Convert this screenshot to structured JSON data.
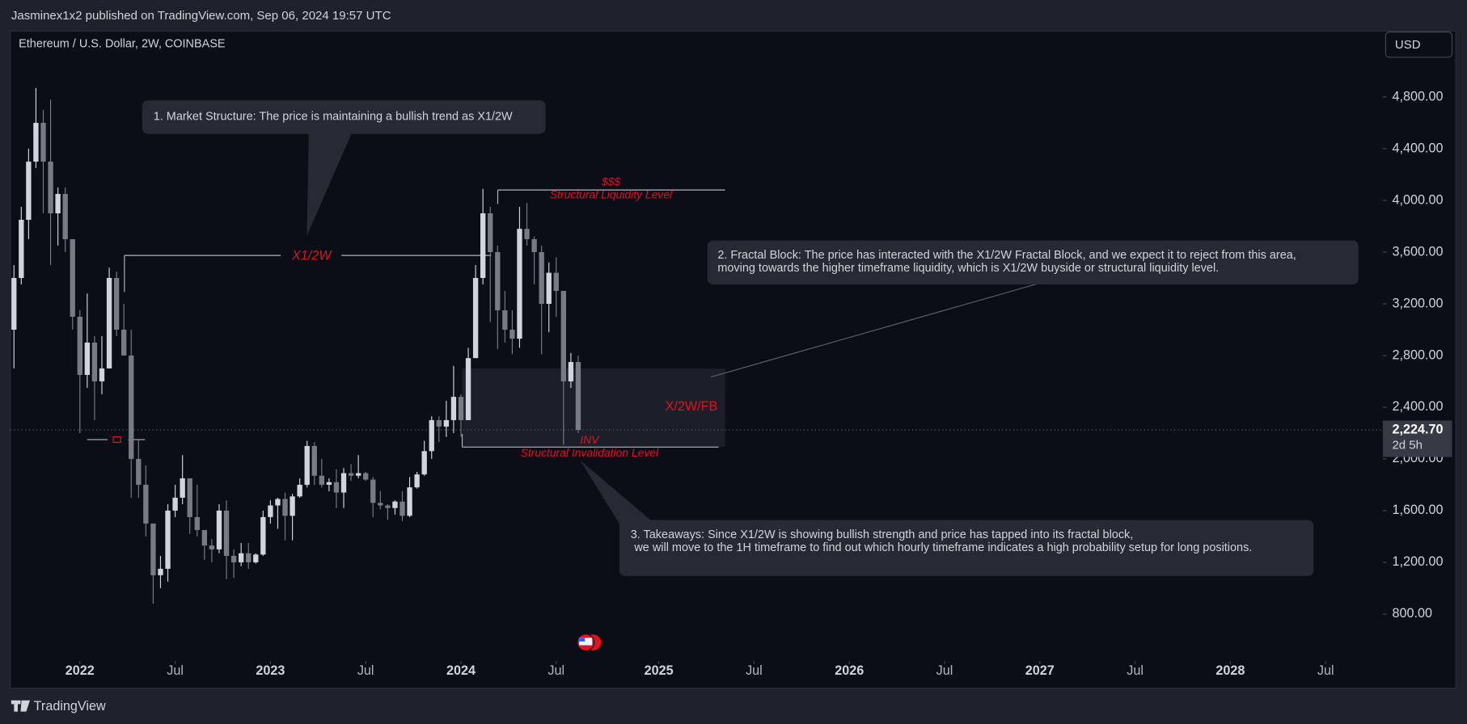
{
  "chart_data": {
    "type": "candlestick",
    "header": "Jasminex1x2 published on TradingView.com, Sep 06, 2024 19:57 UTC",
    "title": "Ethereum / U.S. Dollar, 2W, COINBASE",
    "currency": "USD",
    "brand": "TradingView",
    "up_color": "#d1d4dc",
    "down_color": "#787b86",
    "grid": false,
    "open": [
      3000,
      3400,
      3850,
      4300,
      4600,
      4300,
      3900,
      4050,
      3700,
      3100,
      2650,
      2900,
      2600,
      2700,
      3400,
      3000,
      2800,
      2000,
      1800,
      1500,
      1100,
      1150,
      1600,
      1700,
      1850,
      1550,
      1450,
      1330,
      1300,
      1600,
      1250,
      1200,
      1270,
      1200,
      1260,
      1550,
      1640,
      1690,
      1560,
      1710,
      1800,
      2100,
      1870,
      1800,
      1820,
      1740,
      1890,
      1870,
      1890,
      1840,
      1660,
      1640,
      1620,
      1670,
      1560,
      1780,
      1880,
      2060,
      2300,
      2250,
      2300,
      2480,
      2300,
      2780,
      3400,
      3900,
      3600,
      3150,
      3000,
      2930,
      3780,
      3700,
      3600,
      3200,
      3440,
      3300,
      2600,
      2750
    ],
    "high": [
      3500,
      3950,
      4400,
      4870,
      4700,
      4780,
      4100,
      4100,
      3700,
      3150,
      3280,
      2950,
      2950,
      3480,
      3450,
      3200,
      3000,
      2150,
      1950,
      1500,
      1250,
      1650,
      1800,
      2030,
      1850,
      1800,
      1450,
      1380,
      1650,
      1680,
      1300,
      1350,
      1350,
      1270,
      1600,
      1680,
      1700,
      1740,
      1730,
      1850,
      2140,
      2130,
      2000,
      1850,
      1920,
      1930,
      1960,
      2030,
      1900,
      1860,
      1750,
      1650,
      1680,
      1750,
      1860,
      1900,
      2140,
      2330,
      2330,
      2450,
      2720,
      2500,
      2860,
      3500,
      4090,
      3950,
      3650,
      3300,
      3150,
      3950,
      3980,
      3720,
      3650,
      3520,
      3560,
      3300,
      2820,
      2800
    ],
    "low": [
      2700,
      3350,
      3700,
      4250,
      3900,
      3500,
      3650,
      3600,
      3000,
      2200,
      2550,
      2300,
      2500,
      2700,
      2950,
      2800,
      1700,
      1700,
      1400,
      880,
      1000,
      1050,
      1550,
      1650,
      1420,
      1400,
      1220,
      1200,
      1270,
      1070,
      1080,
      1170,
      1150,
      1190,
      1250,
      1500,
      1460,
      1370,
      1370,
      1700,
      1780,
      1800,
      1780,
      1750,
      1620,
      1620,
      1830,
      1850,
      1830,
      1550,
      1610,
      1530,
      1570,
      1520,
      1550,
      1770,
      1870,
      2000,
      2130,
      2170,
      2200,
      2170,
      2300,
      2780,
      3350,
      3060,
      2850,
      2900,
      2810,
      2860,
      3650,
      3350,
      2810,
      2980,
      3100,
      2110,
      2550,
      2200
    ],
    "close": [
      3400,
      3850,
      4300,
      4600,
      4300,
      3900,
      4050,
      3700,
      3100,
      2650,
      2900,
      2600,
      2700,
      3400,
      3000,
      2800,
      2000,
      1800,
      1500,
      1100,
      1150,
      1600,
      1700,
      1850,
      1550,
      1450,
      1330,
      1300,
      1600,
      1250,
      1200,
      1270,
      1200,
      1260,
      1550,
      1640,
      1690,
      1560,
      1710,
      1800,
      2100,
      1870,
      1800,
      1820,
      1740,
      1890,
      1870,
      1890,
      1840,
      1660,
      1640,
      1620,
      1670,
      1560,
      1780,
      1880,
      2060,
      2300,
      2250,
      2300,
      2480,
      2300,
      2780,
      3400,
      3900,
      3600,
      3150,
      3000,
      2930,
      3780,
      3700,
      3600,
      3200,
      3440,
      3300,
      2600,
      2750,
      2224.7
    ],
    "xlim": [
      -0.5,
      186.8
    ],
    "xticks": [
      {
        "value": 9,
        "label": "2022"
      },
      {
        "value": 22,
        "label": "Jul"
      },
      {
        "value": 35,
        "label": "2023"
      },
      {
        "value": 48,
        "label": "Jul"
      },
      {
        "value": 61,
        "label": "2024"
      },
      {
        "value": 74,
        "label": "Jul"
      },
      {
        "value": 88,
        "label": "2025"
      },
      {
        "value": 101,
        "label": "Jul"
      },
      {
        "value": 114,
        "label": "2026"
      },
      {
        "value": 127,
        "label": "Jul"
      },
      {
        "value": 140,
        "label": "2027"
      },
      {
        "value": 153,
        "label": "Jul"
      },
      {
        "value": 166,
        "label": "2028"
      },
      {
        "value": 179,
        "label": "Jul"
      }
    ],
    "ylim": [
      450,
      5310
    ],
    "yticks": [
      {
        "value": 800,
        "label": "800.00"
      },
      {
        "value": 1200,
        "label": "1,200.00"
      },
      {
        "value": 1600,
        "label": "1,600.00"
      },
      {
        "value": 2000,
        "label": "2,000.00"
      },
      {
        "value": 2400,
        "label": "2,400.00"
      },
      {
        "value": 2800,
        "label": "2,800.00"
      },
      {
        "value": 3200,
        "label": "3,200.00"
      },
      {
        "value": 3600,
        "label": "3,600.00"
      },
      {
        "value": 4000,
        "label": "4,000.00"
      },
      {
        "value": 4400,
        "label": "4,400.00"
      },
      {
        "value": 4800,
        "label": "4,800.00"
      }
    ],
    "last_price": {
      "value": 2224.7,
      "label": "2,224.70"
    },
    "countdown": "2d 5h",
    "annotations": {
      "market_structure": "1. Market Structure: The price is maintaining a bullish trend as X1/2W",
      "fractal_block": [
        "2. Fractal Block: The price has interacted with the X1/2W Fractal Block, and we expect it to reject from this area,",
        "moving towards the higher timeframe liquidity, which is X1/2W buyside or structural liquidity level."
      ],
      "takeaways": [
        "3. Takeaways: Since X1/2W is showing bullish strength and price has tapped into its fractal block,",
        "we will move to the 1H timeframe to find out which hourly timeframe indicates a high probability setup for long positions."
      ],
      "liquidity_symbol": "$$$",
      "liquidity_level": "Structural Liquidity Level",
      "trend_label": "X1/2W",
      "fractal_block_label": "X/2W/FB",
      "inv_label": "INV",
      "invalidation_level": "Structural Invalidation Level"
    }
  }
}
